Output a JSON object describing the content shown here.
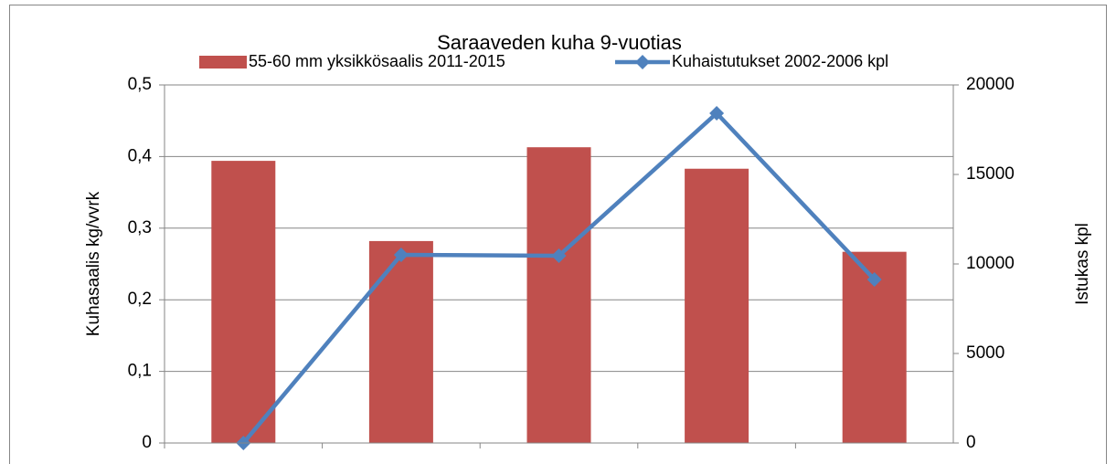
{
  "chart_data": {
    "type": "combo",
    "title": "Saraaveden kuha 9-vuotias",
    "categories": [
      null,
      null,
      null,
      null,
      null
    ],
    "ylabel": "Kuhasaalis kg/vvrk",
    "y2label": "Istukas kpl",
    "ylim": [
      0,
      0.5
    ],
    "yticks": [
      0,
      {
        "value": 0.1,
        "label": "0,1"
      },
      {
        "value": 0.2,
        "label": "0,2"
      },
      {
        "value": 0.3,
        "label": "0,3"
      },
      {
        "value": 0.4,
        "label": "0,4"
      },
      {
        "value": 0.5,
        "label": "0,5"
      }
    ],
    "y2lim": [
      0,
      20000
    ],
    "y2ticks": [
      0,
      5000,
      10000,
      15000,
      20000
    ],
    "grid": true,
    "legend": "top",
    "series": [
      {
        "name": "55-60 mm yksikkösaalis 2011-2015",
        "type": "bar",
        "color": "#c0504d",
        "values": [
          0.394,
          0.282,
          0.413,
          0.383,
          0.267
        ]
      },
      {
        "name": "Kuhaistutukset 2002-2006 kpl",
        "type": "line",
        "axis": "y2",
        "color": "#4f81bd",
        "values": [
          0,
          10510,
          10460,
          18420,
          9130
        ]
      }
    ]
  }
}
